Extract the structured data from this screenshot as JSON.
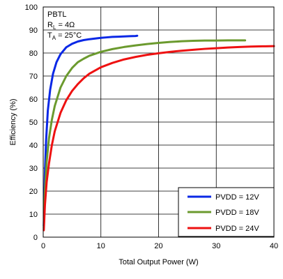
{
  "chart_data": {
    "type": "line",
    "title": "",
    "xlabel": "Total Output Power (W)",
    "ylabel": "Efficiency (%)",
    "xlim": [
      0,
      40
    ],
    "ylim": [
      0,
      100
    ],
    "x_ticks": [
      0,
      10,
      20,
      30,
      40
    ],
    "y_ticks": [
      0,
      10,
      20,
      30,
      40,
      50,
      60,
      70,
      80,
      90,
      100
    ],
    "grid": true,
    "legend_position": "bottom-right",
    "annotation": {
      "line1": "PBTL",
      "line2_main": "R",
      "line2_sub": "L",
      "line2_rest": " = 4Ω",
      "line3_main": "T",
      "line3_sub": "A",
      "line3_rest": " = 25°C"
    },
    "series": [
      {
        "name": "PVDD = 12V",
        "color": "#0a28e6",
        "x": [
          0.1,
          0.3,
          0.5,
          0.8,
          1.2,
          1.7,
          2.3,
          3.0,
          4.0,
          5.0,
          6.0,
          7.0,
          8.0,
          9.0,
          10.0,
          11.0,
          12.0,
          13.0,
          14.0,
          15.0,
          16.0,
          16.3
        ],
        "y": [
          5,
          28,
          42,
          55,
          64,
          71,
          76,
          79.5,
          82.5,
          84,
          85,
          85.6,
          86,
          86.3,
          86.6,
          86.8,
          87,
          87.1,
          87.2,
          87.3,
          87.4,
          87.5
        ]
      },
      {
        "name": "PVDD = 18V",
        "color": "#6b9a2e",
        "x": [
          0.1,
          0.3,
          0.6,
          1.0,
          1.5,
          2.0,
          3.0,
          4.0,
          5.0,
          6.0,
          7.0,
          8.0,
          10.0,
          12.0,
          14.0,
          16.0,
          18.0,
          20.0,
          22.0,
          24.0,
          26.0,
          28.0,
          30.0,
          32.0,
          34.0,
          35.0
        ],
        "y": [
          4,
          20,
          33,
          43,
          51,
          57,
          65,
          70,
          73.5,
          76,
          77.5,
          78.8,
          80.5,
          81.7,
          82.6,
          83.3,
          83.9,
          84.4,
          84.8,
          85.1,
          85.3,
          85.4,
          85.4,
          85.5,
          85.5,
          85.5
        ]
      },
      {
        "name": "PVDD = 24V",
        "color": "#ee1111",
        "x": [
          0.1,
          0.3,
          0.6,
          1.0,
          1.5,
          2.0,
          3.0,
          4.0,
          5.0,
          6.0,
          7.0,
          8.0,
          10.0,
          12.0,
          14.0,
          16.0,
          18.0,
          20.0,
          22.0,
          24.0,
          26.0,
          28.0,
          30.0,
          32.0,
          34.0,
          36.0,
          38.0,
          40.0
        ],
        "y": [
          3,
          14,
          24,
          32,
          40,
          46,
          54,
          59.5,
          63.5,
          66.5,
          69,
          71,
          73.8,
          75.7,
          77.2,
          78.3,
          79.2,
          79.9,
          80.5,
          81,
          81.4,
          81.8,
          82.1,
          82.4,
          82.6,
          82.8,
          82.9,
          83
        ]
      }
    ]
  }
}
